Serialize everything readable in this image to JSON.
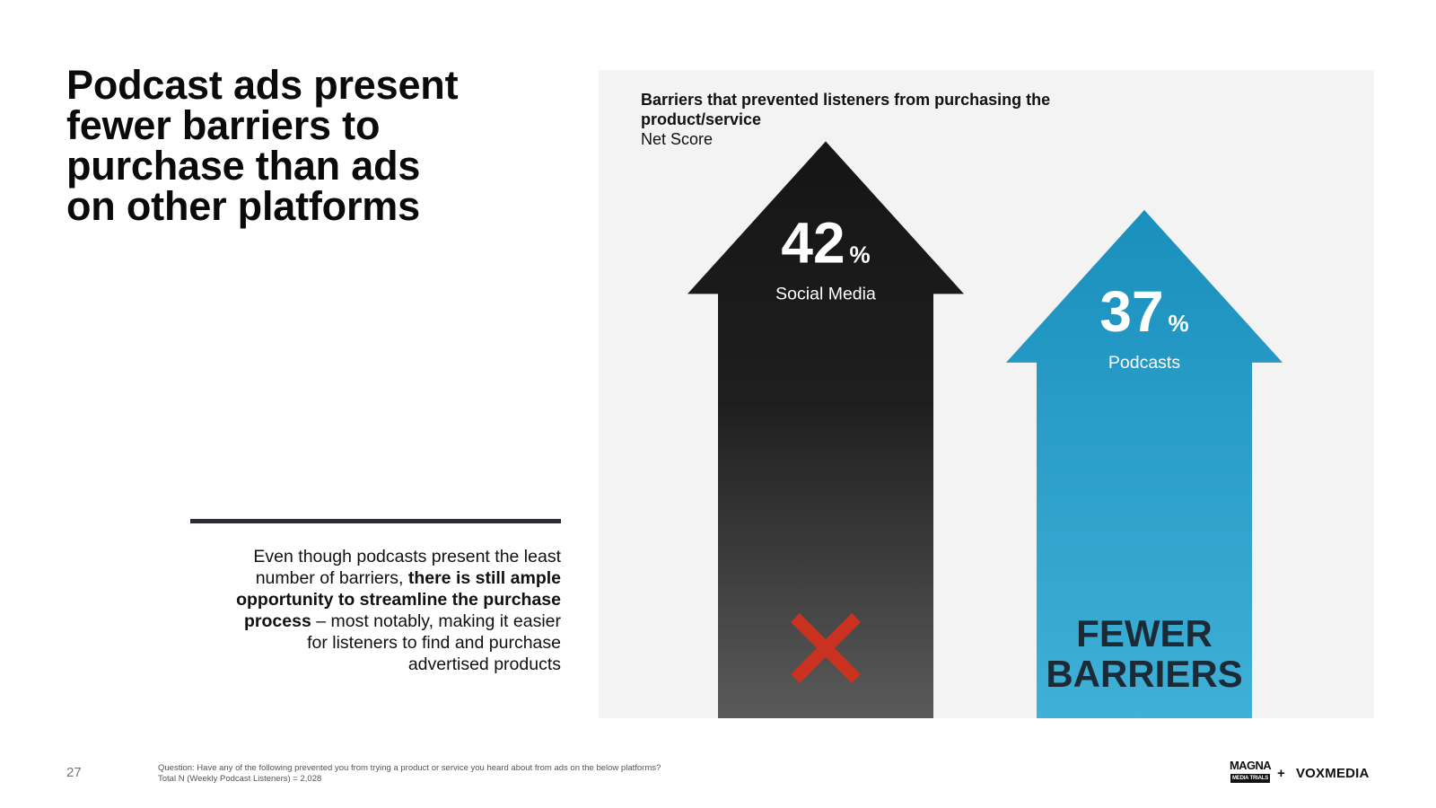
{
  "headline": {
    "lines": [
      "Podcast ads present",
      "fewer barriers to",
      "purchase than ads",
      "on other platforms"
    ]
  },
  "body": {
    "intro": "Even though podcasts present the least number of barriers, ",
    "bold": "there is still ample opportunity to streamline the purchase process",
    "outro": " – most notably, making it easier for listeners to find and purchase advertised products"
  },
  "chart_data": {
    "type": "bar",
    "title": "Barriers that prevented listeners from purchasing the product/service",
    "subtitle": "Net Score",
    "unit": "%",
    "categories": [
      "Social Media",
      "Podcasts"
    ],
    "values": [
      42,
      37
    ],
    "colors": [
      "#232323",
      "#2b9bc4"
    ],
    "annotations": {
      "podcasts": [
        "FEWER",
        "BARRIERS"
      ],
      "social_media_marker": "x-icon",
      "marker_color": "#c8321e"
    }
  },
  "footer": {
    "page_number": "27",
    "question": "Question: Have any of the following prevented you from trying a product or service you heard about from ads on the below platforms?",
    "base": "Total N (Weekly Podcast Listeners) = 2,028"
  },
  "logos": {
    "magna_top": "MAGNA",
    "magna_bottom": "MEDIA TRIALS",
    "plus": "+",
    "voxmedia": "VOXMEDIA"
  }
}
